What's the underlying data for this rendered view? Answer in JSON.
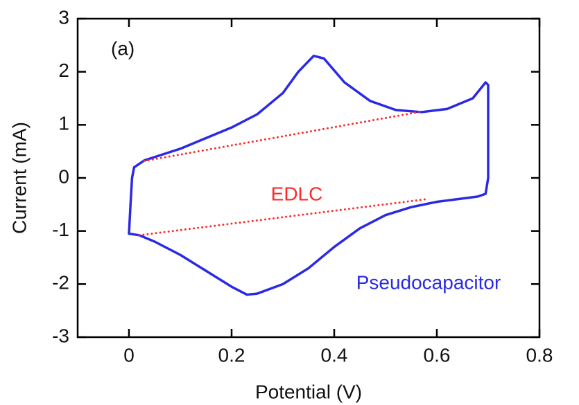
{
  "chart_data": {
    "type": "line",
    "panel_label": "(a)",
    "x_label": "Potential (V)",
    "y_label": "Current (mA)",
    "xlim": [
      -0.1,
      0.8
    ],
    "xticks": [
      0,
      0.2,
      0.4,
      0.6,
      0.8
    ],
    "ylim": [
      -3,
      3
    ],
    "yticks": [
      -3,
      -2,
      -1,
      0,
      1,
      2,
      3
    ],
    "series": [
      {
        "name": "Pseudocapacitor",
        "color": "#2a2ae6",
        "style": "solid",
        "x": [
          0.0,
          0.003,
          0.006,
          0.01,
          0.03,
          0.1,
          0.2,
          0.25,
          0.3,
          0.33,
          0.36,
          0.38,
          0.42,
          0.47,
          0.52,
          0.57,
          0.62,
          0.67,
          0.695,
          0.7,
          0.7,
          0.7,
          0.695,
          0.68,
          0.6,
          0.55,
          0.5,
          0.45,
          0.4,
          0.35,
          0.3,
          0.25,
          0.23,
          0.2,
          0.15,
          0.1,
          0.05,
          0.02,
          0.0
        ],
        "values": [
          -1.05,
          -0.5,
          0.0,
          0.2,
          0.33,
          0.55,
          0.95,
          1.2,
          1.6,
          2.0,
          2.3,
          2.25,
          1.8,
          1.45,
          1.28,
          1.24,
          1.3,
          1.5,
          1.8,
          1.75,
          1.0,
          0.0,
          -0.3,
          -0.35,
          -0.45,
          -0.55,
          -0.7,
          -0.95,
          -1.3,
          -1.7,
          -2.0,
          -2.18,
          -2.2,
          -2.05,
          -1.75,
          -1.45,
          -1.2,
          -1.08,
          -1.05
        ]
      },
      {
        "name": "EDLC",
        "color": "#ff2a2a",
        "style": "dotted",
        "x": [
          0.03,
          0.57,
          null,
          0.02,
          0.58
        ],
        "values": [
          0.32,
          1.25,
          null,
          -1.08,
          -0.4
        ]
      }
    ]
  }
}
